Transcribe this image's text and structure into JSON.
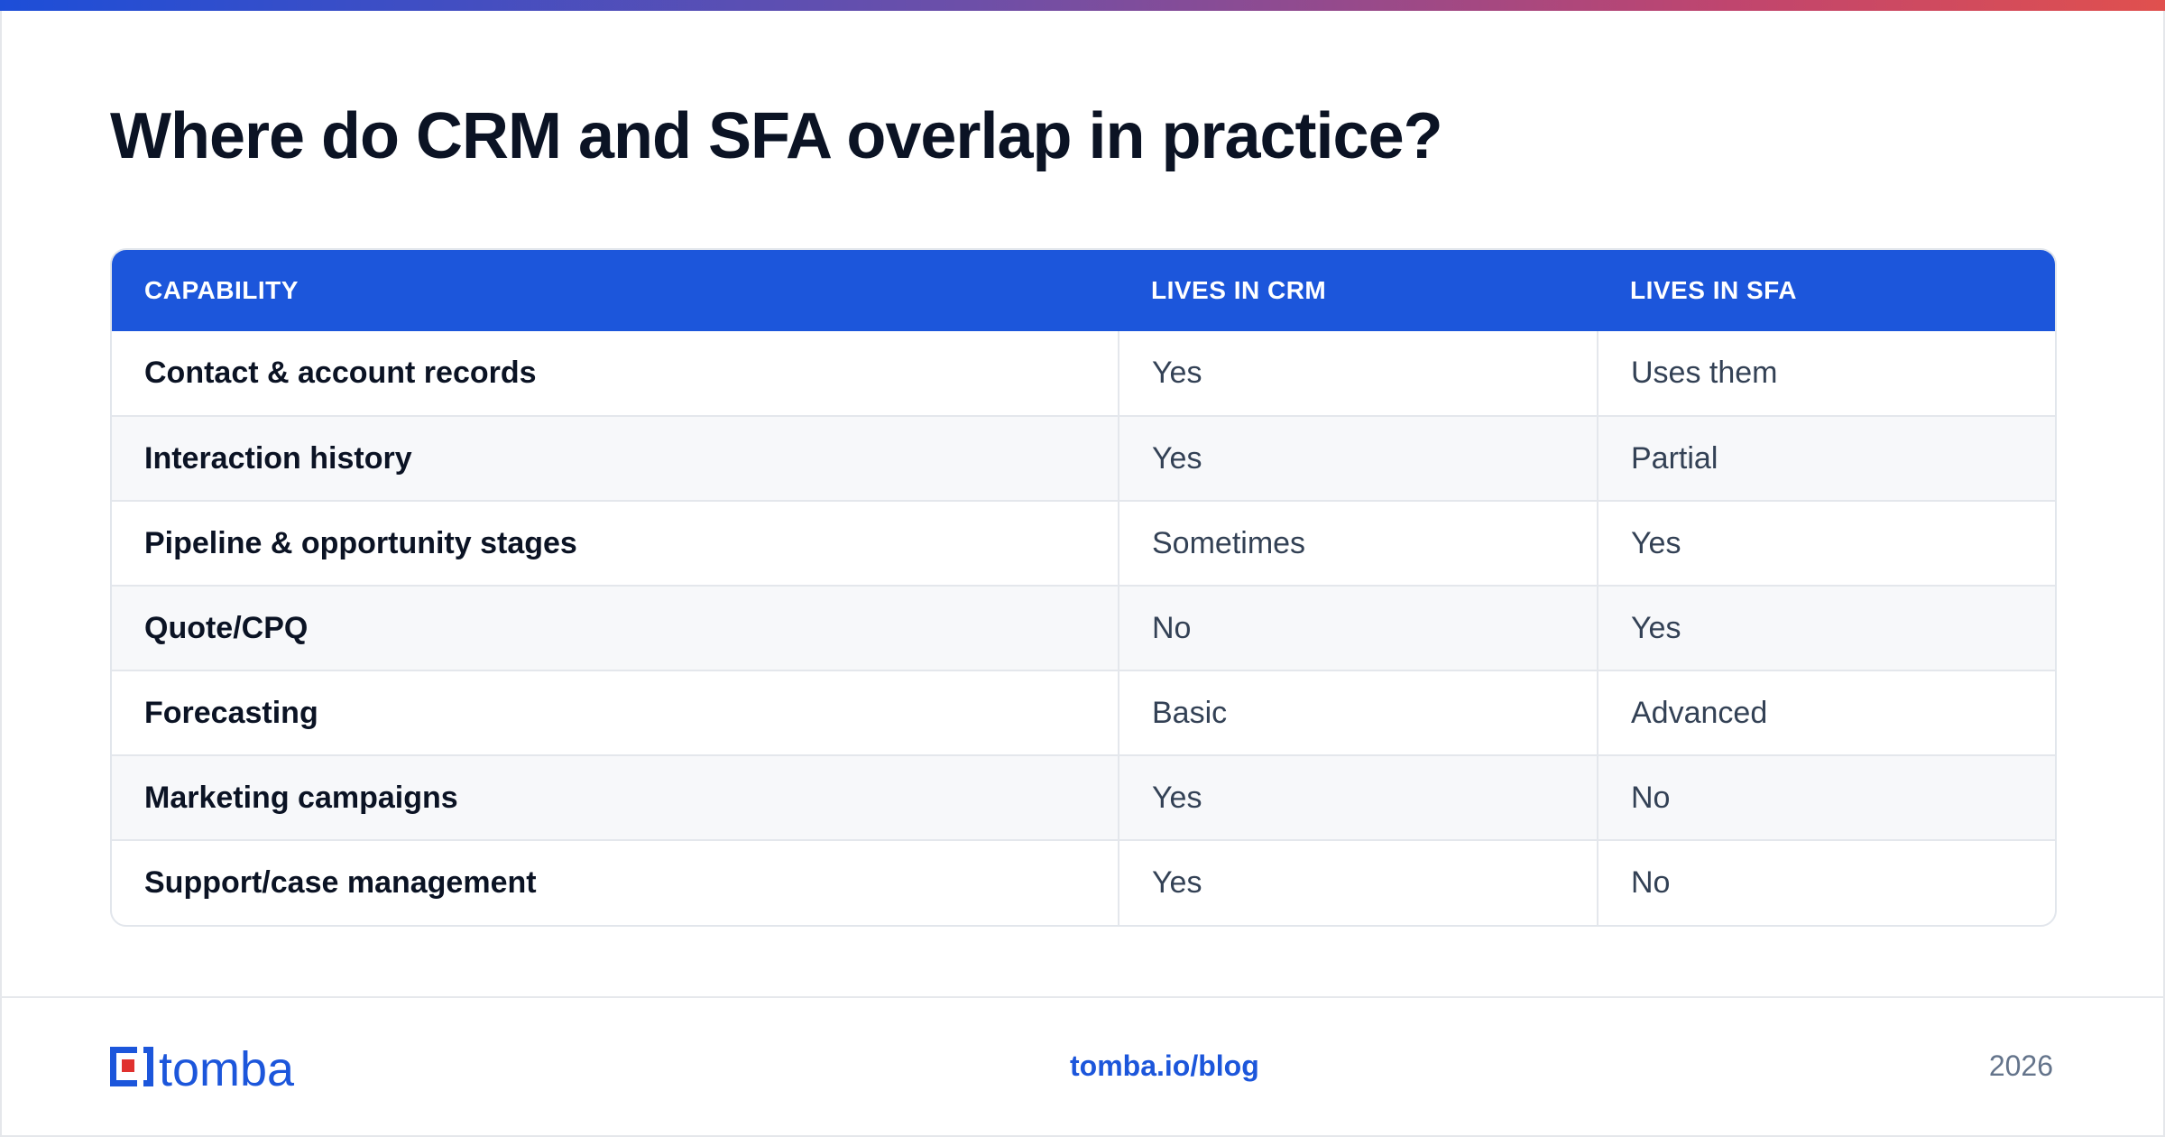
{
  "header": {
    "title": "Where do CRM and SFA overlap in practice?"
  },
  "table": {
    "columns": [
      "CAPABILITY",
      "LIVES IN CRM",
      "LIVES IN SFA"
    ],
    "rows": [
      {
        "capability": "Contact & account records",
        "crm": "Yes",
        "sfa": "Uses them"
      },
      {
        "capability": "Interaction history",
        "crm": "Yes",
        "sfa": "Partial"
      },
      {
        "capability": "Pipeline & opportunity stages",
        "crm": "Sometimes",
        "sfa": "Yes"
      },
      {
        "capability": "Quote/CPQ",
        "crm": "No",
        "sfa": "Yes"
      },
      {
        "capability": "Forecasting",
        "crm": "Basic",
        "sfa": "Advanced"
      },
      {
        "capability": "Marketing campaigns",
        "crm": "Yes",
        "sfa": "No"
      },
      {
        "capability": "Support/case management",
        "crm": "Yes",
        "sfa": "No"
      }
    ]
  },
  "footer": {
    "logo_text": "tomba",
    "link": "tomba.io/blog",
    "year": "2026"
  },
  "colors": {
    "accent": "#1c56db",
    "logo_red": "#e0312f"
  }
}
